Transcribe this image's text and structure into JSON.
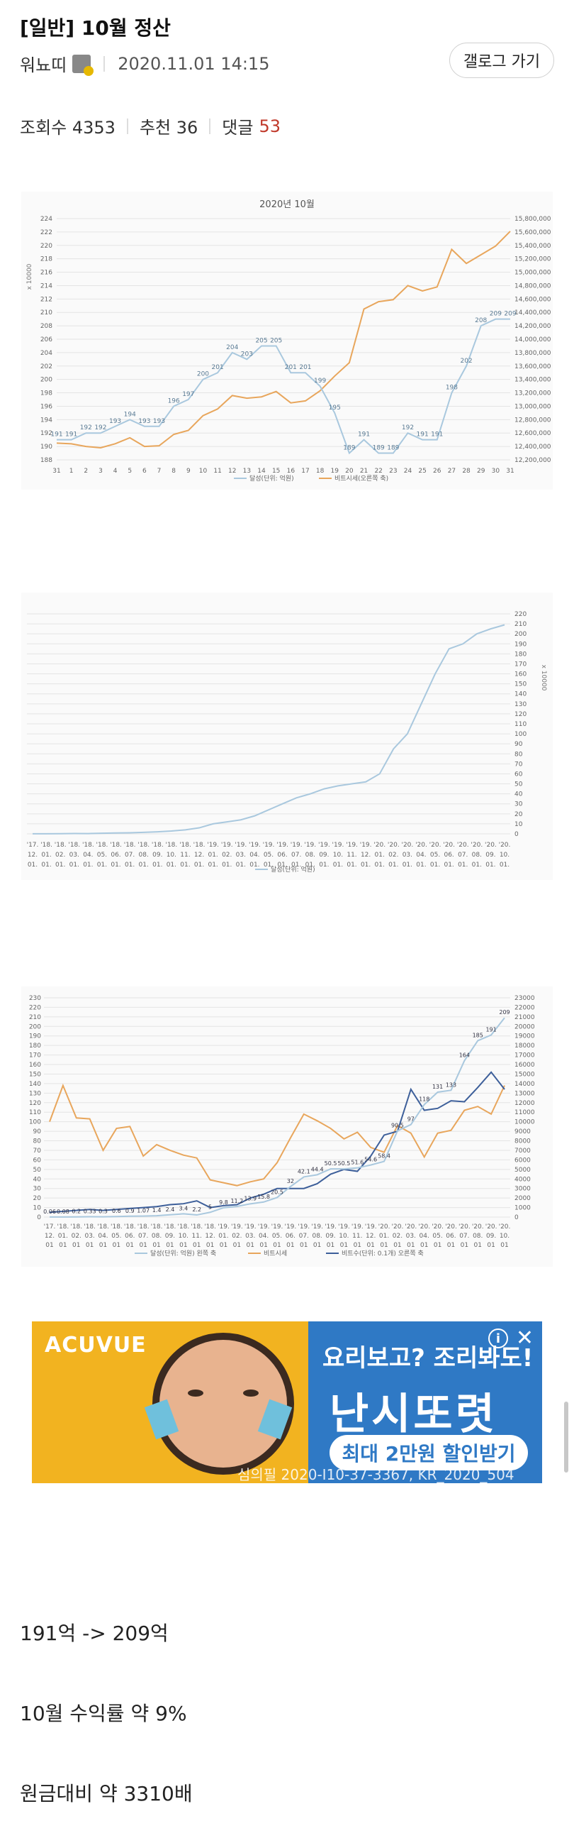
{
  "post": {
    "title": "[일반] 10월 정산",
    "author": "워뇨띠",
    "datetime": "2020.11.01 14:15",
    "gallery_button": "갤로그 가기",
    "views_label": "조회수 4353",
    "recommend_label": "추천 36",
    "comments_label": "댓글",
    "comments_count": "53"
  },
  "chart_data": [
    {
      "type": "line",
      "title": "2020년 10월",
      "ylabel": "x 10000",
      "x": [
        "31",
        "1",
        "2",
        "3",
        "4",
        "5",
        "6",
        "7",
        "8",
        "9",
        "10",
        "11",
        "12",
        "13",
        "14",
        "15",
        "16",
        "17",
        "18",
        "19",
        "20",
        "21",
        "22",
        "23",
        "24",
        "25",
        "26",
        "27",
        "28",
        "29",
        "30",
        "31"
      ],
      "ylim": [
        188,
        224
      ],
      "y2lim": [
        12200000,
        15800000
      ],
      "y_ticks": [
        188,
        190,
        192,
        194,
        196,
        198,
        200,
        202,
        204,
        206,
        208,
        210,
        212,
        214,
        216,
        218,
        220,
        222,
        224
      ],
      "y2_ticks": [
        "12,200,000",
        "12,400,000",
        "12,600,000",
        "12,800,000",
        "13,000,000",
        "13,200,000",
        "13,400,000",
        "13,600,000",
        "13,800,000",
        "14,000,000",
        "14,200,000",
        "14,400,000",
        "14,600,000",
        "14,800,000",
        "15,000,000",
        "15,200,000",
        "15,400,000",
        "15,600,000",
        "15,800,000"
      ],
      "series": [
        {
          "name": "달성(단위: 억원)",
          "axis": "left",
          "color": "#a9c8de",
          "values": [
            191,
            191,
            192,
            192,
            193,
            194,
            193,
            193,
            196,
            197,
            200,
            201,
            204,
            203,
            205,
            205,
            201,
            201,
            199,
            195,
            189,
            191,
            189,
            189,
            192,
            191,
            191,
            198,
            202,
            208,
            209,
            209
          ]
        },
        {
          "name": "비트시세(오른쪽 축)",
          "axis": "right",
          "color": "#e8a65c",
          "values": [
            12450000,
            12440000,
            12400000,
            12380000,
            12440000,
            12530000,
            12400000,
            12410000,
            12580000,
            12640000,
            12860000,
            12960000,
            13160000,
            13120000,
            13140000,
            13220000,
            13050000,
            13080000,
            13230000,
            13450000,
            13650000,
            14450000,
            14560000,
            14590000,
            14800000,
            14720000,
            14780000,
            15340000,
            15130000,
            15260000,
            15390000,
            15610000
          ]
        }
      ]
    },
    {
      "type": "line",
      "title": "",
      "ylabel": "x 10000",
      "ylim": [
        0,
        220
      ],
      "y_ticks": [
        0,
        10,
        20,
        30,
        40,
        50,
        60,
        70,
        80,
        90,
        100,
        110,
        120,
        130,
        140,
        150,
        160,
        170,
        180,
        190,
        200,
        210,
        220
      ],
      "x_top": [
        "'17.",
        "'18.",
        "'18.",
        "'18.",
        "'18.",
        "'18.",
        "'18.",
        "'18.",
        "'18.",
        "'18.",
        "'18.",
        "'18.",
        "'18.",
        "'19.",
        "'19.",
        "'19.",
        "'19.",
        "'19.",
        "'19.",
        "'19.",
        "'19.",
        "'19.",
        "'19.",
        "'19.",
        "'19.",
        "'20.",
        "'20.",
        "'20.",
        "'20.",
        "'20.",
        "'20.",
        "'20.",
        "'20.",
        "'20.",
        "'20."
      ],
      "x_mid": [
        "12.",
        "01.",
        "02.",
        "03.",
        "04.",
        "05.",
        "06.",
        "07.",
        "08.",
        "09.",
        "10.",
        "11.",
        "12.",
        "01.",
        "02.",
        "03.",
        "04.",
        "05.",
        "06.",
        "07.",
        "08.",
        "09.",
        "10.",
        "11.",
        "12.",
        "01.",
        "02.",
        "03.",
        "04.",
        "05.",
        "06.",
        "07.",
        "08.",
        "09.",
        "10."
      ],
      "x_bot": "01.",
      "series": [
        {
          "name": "달성(단위: 억원)",
          "color": "#a9c8de",
          "values": [
            0.06,
            0.08,
            0.2,
            0.33,
            0.3,
            0.6,
            0.9,
            1.1,
            1.5,
            2.0,
            2.8,
            4.0,
            6.0,
            10,
            12,
            14,
            18,
            24,
            30,
            36,
            40,
            45,
            48,
            50,
            52,
            60,
            85,
            100,
            130,
            160,
            185,
            190,
            200,
            205,
            209
          ]
        }
      ]
    },
    {
      "type": "line",
      "title": "",
      "ylim": [
        0,
        230
      ],
      "y2lim": [
        0,
        23000
      ],
      "y_ticks": [
        0,
        10,
        20,
        30,
        40,
        50,
        60,
        70,
        80,
        90,
        100,
        110,
        120,
        130,
        140,
        150,
        160,
        170,
        180,
        190,
        200,
        210,
        220,
        230
      ],
      "y2_ticks": [
        0,
        1000,
        2000,
        3000,
        4000,
        5000,
        6000,
        7000,
        8000,
        9000,
        10000,
        11000,
        12000,
        13000,
        14000,
        15000,
        16000,
        17000,
        18000,
        19000,
        20000,
        21000,
        22000,
        23000
      ],
      "x_top": [
        "'17.",
        "'18.",
        "'18.",
        "'18.",
        "'18.",
        "'18.",
        "'18.",
        "'18.",
        "'18.",
        "'18.",
        "'18.",
        "'18.",
        "'18.",
        "'19.",
        "'19.",
        "'19.",
        "'19.",
        "'19.",
        "'19.",
        "'19.",
        "'19.",
        "'19.",
        "'19.",
        "'19.",
        "'19.",
        "'20.",
        "'20.",
        "'20.",
        "'20.",
        "'20.",
        "'20.",
        "'20.",
        "'20.",
        "'20.",
        "'20."
      ],
      "x_mid": [
        "12.",
        "01.",
        "02.",
        "03.",
        "04.",
        "05.",
        "06.",
        "07.",
        "08.",
        "09.",
        "10.",
        "11.",
        "12.",
        "01.",
        "02.",
        "03.",
        "04.",
        "05.",
        "06.",
        "07.",
        "08.",
        "09.",
        "10.",
        "11.",
        "12.",
        "01.",
        "02.",
        "03.",
        "04.",
        "05.",
        "06.",
        "07.",
        "08.",
        "09.",
        "10."
      ],
      "x_bot": [
        "01",
        "01",
        "01",
        "01",
        "01",
        "01",
        "01",
        "01",
        "01",
        "01",
        "01",
        "01",
        "01",
        "01",
        "01",
        "01",
        "01",
        "01",
        "01",
        "01",
        "01",
        "01",
        "01",
        "01",
        "01",
        "01",
        "01",
        "01",
        "01",
        "01",
        "01",
        "01",
        "01",
        "01",
        "01"
      ],
      "series": [
        {
          "name": "달성(단위: 억원) 왼쪽 축",
          "axis": "left",
          "color": "#a9c8de",
          "values": [
            0.06,
            0.08,
            0.2,
            0.33,
            0.3,
            0.6,
            0.9,
            1.07,
            1.4,
            2.4,
            3.4,
            2.2,
            5.0,
            9.8,
            11.2,
            13.9,
            15.8,
            20.5,
            32,
            42.1,
            44.4,
            50.5,
            50.5,
            51.6,
            54.6,
            58.4,
            90.5,
            97,
            118,
            131,
            133,
            164,
            185,
            191,
            209
          ],
          "labels": [
            "0.06",
            "0.08",
            "0.2",
            "0.33",
            "0.3",
            "0.6",
            "0.9",
            "1.07",
            "1.4",
            "2.4",
            "3.4",
            "2.2",
            "5",
            "9.8",
            "11.2",
            "13.9",
            "15.8",
            "20.5",
            "32",
            "42.1",
            "44.4",
            "50.5",
            "50.5",
            "51.6",
            "54.6",
            "58.4",
            "90.5",
            "97",
            "118",
            "131",
            "133",
            "164",
            "185",
            "191",
            "209"
          ]
        },
        {
          "name": "비트시세",
          "axis": "right",
          "color": "#e8a65c",
          "values": [
            10000,
            13800,
            10400,
            10300,
            7000,
            9300,
            9500,
            6400,
            7600,
            7000,
            6500,
            6200,
            3900,
            3600,
            3300,
            3700,
            4000,
            5700,
            8300,
            10800,
            10100,
            9300,
            8200,
            8900,
            7300,
            6800,
            9600,
            8800,
            6300,
            8800,
            9100,
            11200,
            11600,
            10800,
            13800
          ]
        },
        {
          "name": "비트수(단위: 0.1개) 오른쪽 축",
          "axis": "right",
          "color": "#3d5f9a",
          "values": [
            500,
            600,
            700,
            800,
            700,
            800,
            900,
            1000,
            1100,
            1300,
            1400,
            1700,
            1000,
            1200,
            1300,
            2000,
            2400,
            3000,
            3000,
            3000,
            3500,
            4500,
            5000,
            4800,
            6400,
            8600,
            9000,
            13400,
            11200,
            11400,
            12200,
            12100,
            13600,
            15200,
            13400
          ]
        }
      ]
    }
  ],
  "ad": {
    "brand": "ACUVUE",
    "headline": "요리보고? 조리봐도!",
    "big": "난시또렷",
    "pill": "최대 2만원 할인받기",
    "legal": "심의필 2020-I10-37-3367, KR_2020_504",
    "info_icon": "i",
    "close_icon": "✕"
  },
  "body": {
    "line1": "191억 -> 209억",
    "line2": "10월 수익률 약 9%",
    "line3": "원금대비 약 3310배"
  }
}
